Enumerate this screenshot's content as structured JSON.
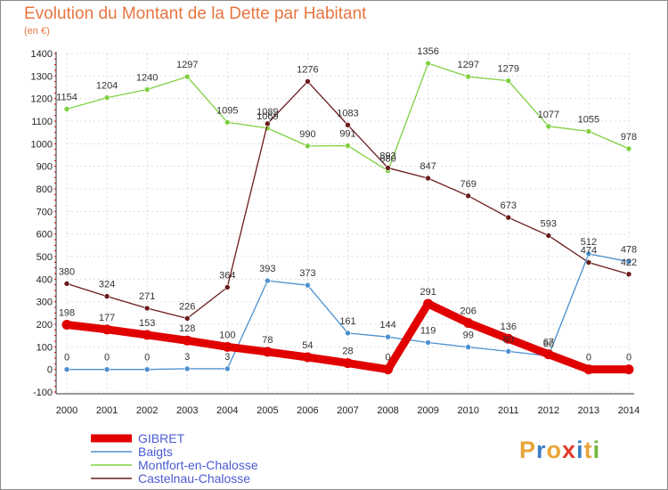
{
  "title": "Evolution du Montant de la Dette par Habitant",
  "subtitle": "(en €)",
  "logo": {
    "text": "Proxiti",
    "colors": [
      "#e8a53a",
      "#3a7fc4",
      "#e8a53a",
      "#e23b2d",
      "#3a7fc4",
      "#e8a53a",
      "#6fb83a"
    ]
  },
  "chart_data": {
    "type": "line",
    "x": [
      2000,
      2001,
      2002,
      2003,
      2004,
      2005,
      2006,
      2007,
      2008,
      2009,
      2010,
      2011,
      2012,
      2013,
      2014
    ],
    "ylim": [
      -100,
      1400
    ],
    "yticks": [
      -100,
      0,
      100,
      200,
      300,
      400,
      500,
      600,
      700,
      800,
      900,
      1000,
      1100,
      1200,
      1300,
      1400
    ],
    "grid": true,
    "legend": "bottom-left",
    "series": [
      {
        "name": "GIBRET",
        "color": "#e00000",
        "values": [
          198,
          177,
          153,
          128,
          100,
          78,
          54,
          28,
          0,
          291,
          206,
          136,
          67,
          0,
          0
        ]
      },
      {
        "name": "Baigts",
        "color": "#4a90d0",
        "values": [
          0,
          0,
          0,
          3,
          3,
          393,
          373,
          161,
          144,
          119,
          99,
          80,
          60,
          512,
          478
        ]
      },
      {
        "name": "Montfort-en-Chalosse",
        "color": "#7ed040",
        "values": [
          1154,
          1204,
          1240,
          1297,
          1095,
          1069,
          990,
          991,
          880,
          1356,
          1297,
          1279,
          1077,
          1055,
          978
        ]
      },
      {
        "name": "Castelnau-Chalosse",
        "color": "#6b1b1b",
        "values": [
          380,
          324,
          271,
          226,
          364,
          1089,
          1276,
          1083,
          893,
          847,
          769,
          673,
          593,
          474,
          422
        ]
      }
    ]
  }
}
